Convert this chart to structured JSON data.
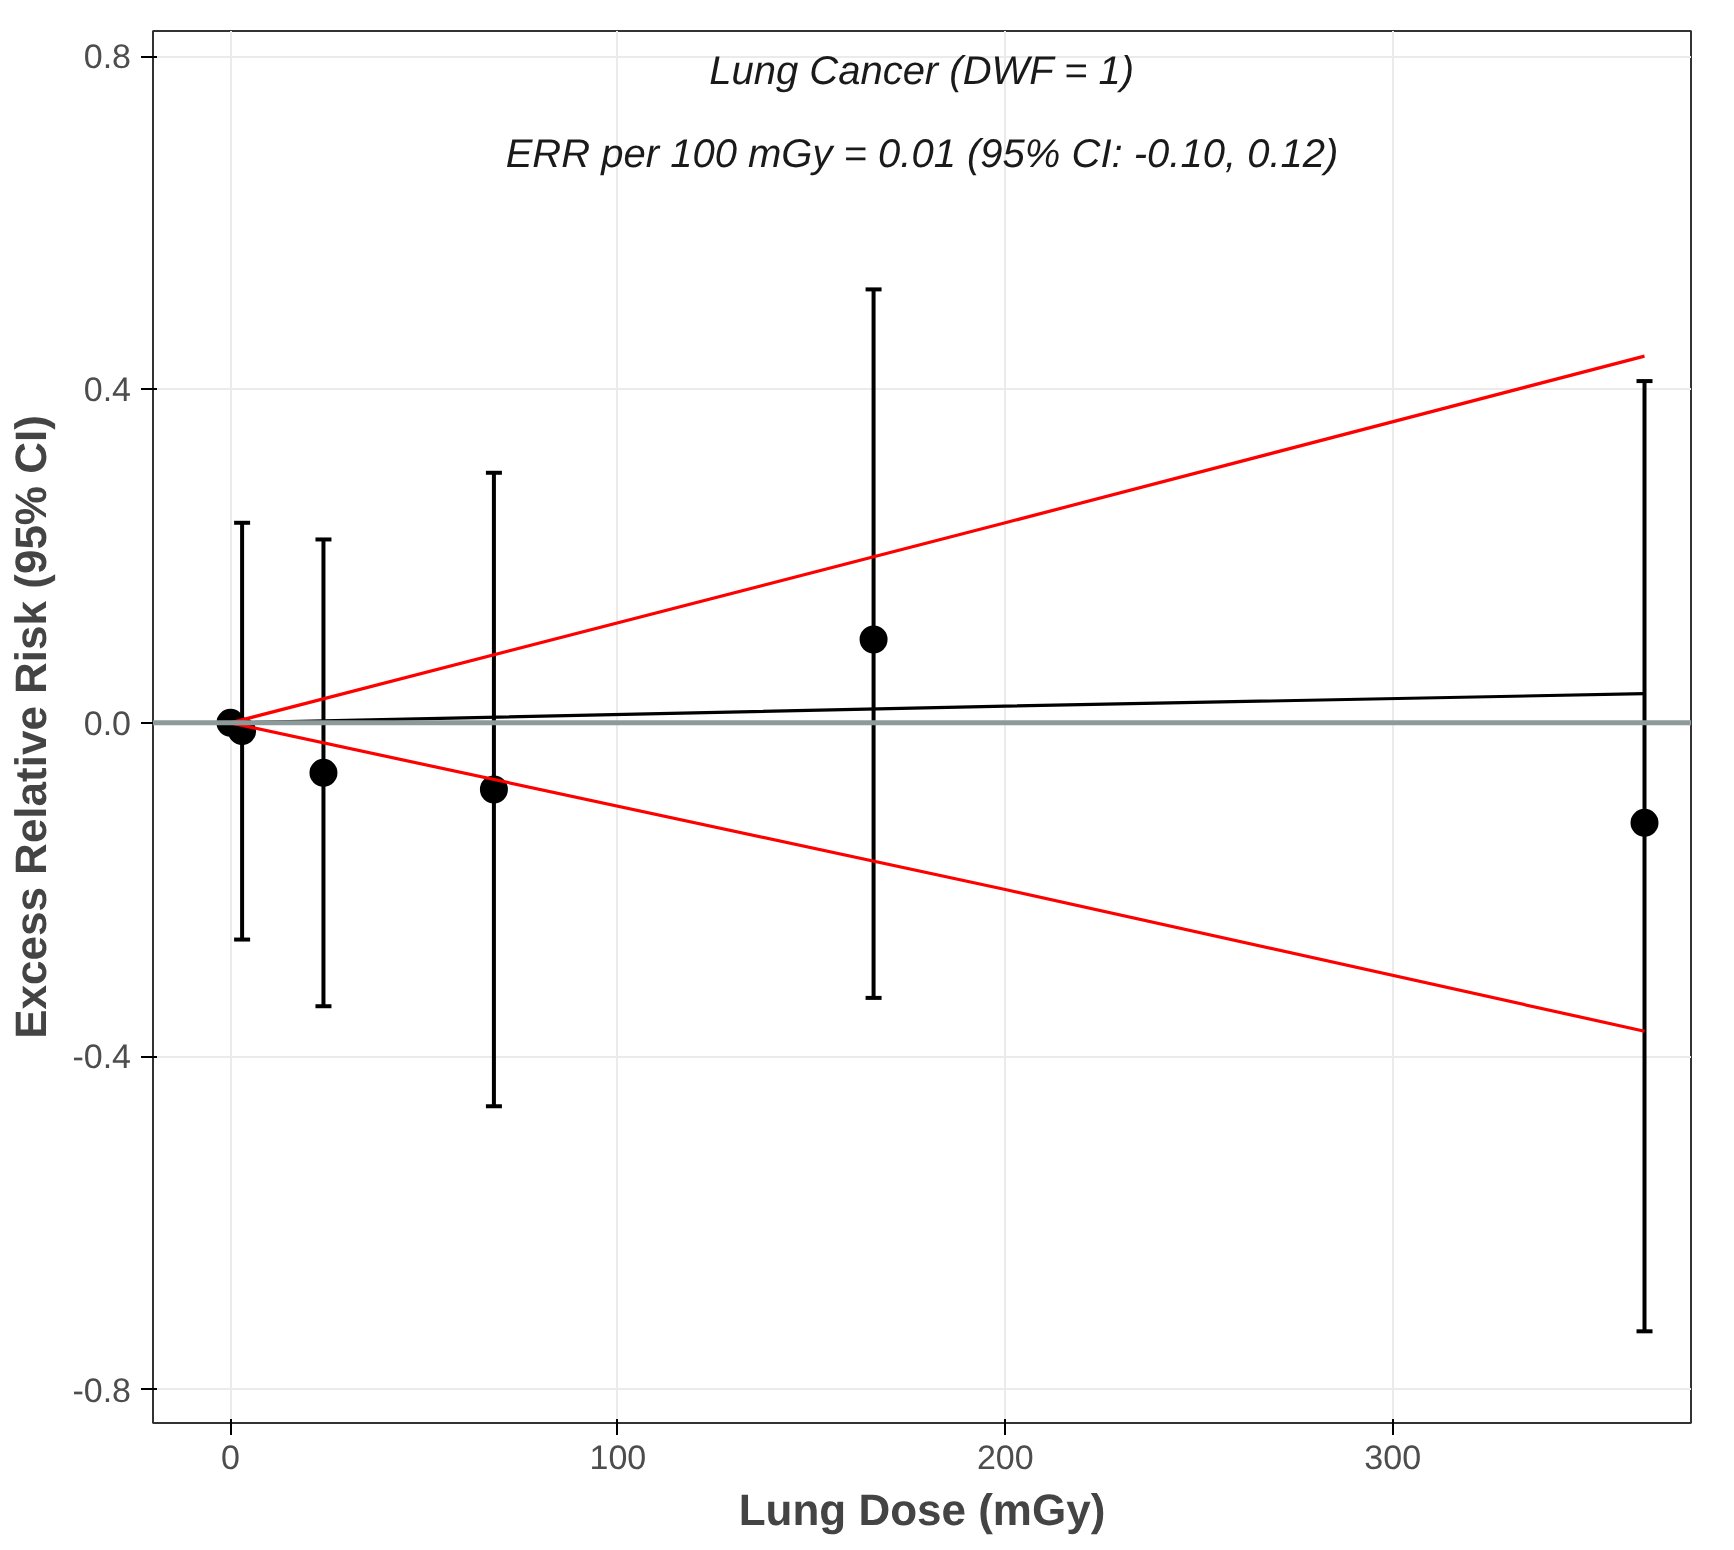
{
  "chart_data": {
    "type": "scatter",
    "xlabel": "Lung Dose (mGy)",
    "ylabel": "Excess Relative Risk (95% CI)",
    "annotations": [
      "Lung Cancer (DWF = 1)",
      "ERR per 100 mGy = 0.01 (95% CI: -0.10, 0.12)"
    ],
    "x": [
      0,
      3,
      24,
      68,
      166,
      365
    ],
    "series": [
      {
        "marker": "circle",
        "color": "#000000",
        "values": [
          0,
          -0.01,
          -0.06,
          -0.08,
          0.1,
          -0.12
        ],
        "errors": [
          null,
          [
            -0.26,
            0.24
          ],
          [
            -0.34,
            0.22
          ],
          [
            -0.46,
            0.3
          ],
          [
            -0.33,
            0.52
          ],
          [
            -0.73,
            0.41
          ]
        ]
      },
      {
        "type": "line",
        "color": "#000000",
        "x": [
          0,
          200,
          365
        ],
        "values": [
          0,
          0.02,
          0.035
        ],
        "line_style": "solid",
        "marker": "none"
      },
      {
        "type": "line",
        "color": "#ff0000",
        "x": [
          0,
          200,
          365
        ],
        "values": [
          0,
          0.24,
          0.44
        ],
        "line_style": "solid",
        "marker": "none"
      },
      {
        "type": "line",
        "color": "#ff0000",
        "x": [
          0,
          200,
          365
        ],
        "values": [
          0,
          -0.2,
          -0.37
        ],
        "line_style": "solid",
        "marker": "none"
      }
    ],
    "xlim": [
      -20,
      377
    ],
    "ylim": [
      -0.84,
      0.83
    ],
    "xticks": [
      0,
      100,
      200,
      300
    ],
    "yticks": [
      {
        "value": -0.8,
        "label": "-0.8"
      },
      {
        "value": -0.4,
        "label": "-0.4"
      },
      {
        "value": 0,
        "label": "0.0"
      },
      {
        "value": 0.4,
        "label": "0.4"
      },
      {
        "value": 0.8,
        "label": "0.8"
      }
    ],
    "ref_lines": [
      {
        "axis": "y",
        "value": 0,
        "label": null,
        "color": "#8c9a9a"
      }
    ],
    "grid": true
  }
}
